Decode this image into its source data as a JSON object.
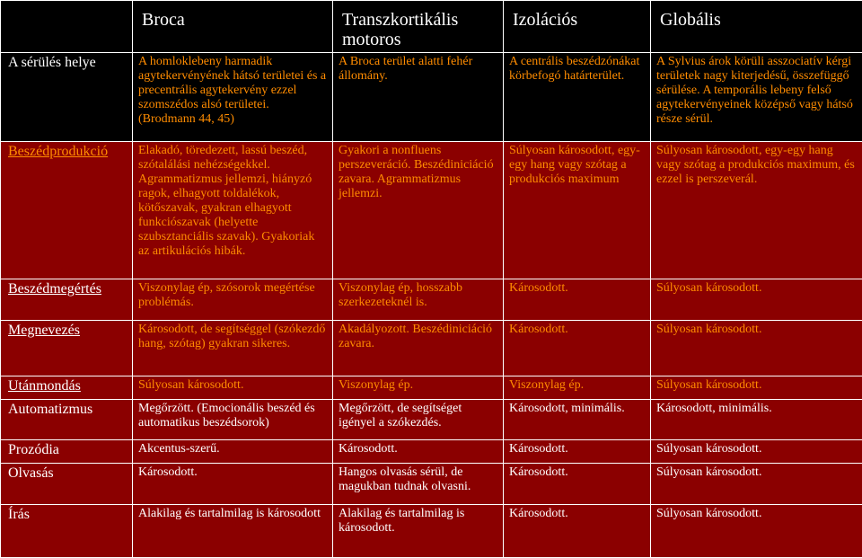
{
  "header": [
    "",
    "Broca",
    "Transzkortikális motoros",
    "Izolációs",
    "Globális"
  ],
  "rows": [
    {
      "label": "A sérülés helye",
      "cells": [
        "A homloklebeny harmadik agytekervényének hátsó területei és a precentrális agytekervény ezzel szomszédos alsó területei. (Brodmann 44, 45)",
        "A Broca terület alatti fehér állomány.",
        "A centrális beszédzónákat körbefogó határterület.",
        "A Sylvius árok körüli asszociatív kérgi területek nagy kiterjedésű, összefüggő sérülése. A temporális lebeny felső agytekervényeinek középső vagy hátsó része sérül."
      ]
    },
    {
      "label": "Beszédprodukció",
      "cells": [
        "Elakadó, töredezett, lassú beszéd, szótalálási nehézségekkel. Agrammatizmus jellemzi, hiányzó ragok, elhagyott toldalékok, kötőszavak, gyakran elhagyott funkciószavak (helyette szubsztanciális szavak). Gyakoriak az artikulációs hibák.",
        "Gyakori a nonfluens perszeveráció. Beszédiniciáció zavara. Agrammatizmus jellemzi.",
        "Súlyosan károsodott, egy-egy hang vagy szótag a produkciós maximum",
        "Súlyosan károsodott, egy-egy hang vagy szótag a produkciós maximum, és ezzel is perszeverál."
      ]
    },
    {
      "label": "Beszédmegértés",
      "cells": [
        "Viszonylag ép, szósorok megértése problémás.",
        "Viszonylag ép, hosszabb szerkezeteknél is.",
        "Károsodott.",
        "Súlyosan károsodott."
      ]
    },
    {
      "label": "Megnevezés",
      "cells": [
        "Károsodott, de segítséggel (szókezdő hang, szótag) gyakran sikeres.",
        "Akadályozott. Beszédiniciáció zavara.",
        "Károsodott.",
        "Súlyosan károsodott."
      ]
    },
    {
      "label": "Utánmondás",
      "cells": [
        "Súlyosan károsodott.",
        "Viszonylag ép.",
        "Viszonylag ép.",
        "Súlyosan károsodott."
      ]
    },
    {
      "label": "Automatizmus",
      "cells": [
        "Megőrzött. (Emocionális beszéd és automatikus beszédsorok)",
        "Megőrzött, de segítséget igényel a szókezdés.",
        "Károsodott, minimális.",
        "Károsodott, minimális."
      ]
    },
    {
      "label": "Prozódia",
      "cells": [
        "Akcentus-szerű.",
        "Károsodott.",
        "Károsodott.",
        "Súlyosan károsodott."
      ]
    },
    {
      "label": "Olvasás",
      "cells": [
        "Károsodott.",
        "Hangos olvasás sérül, de magukban tudnak olvasni.",
        "Károsodott.",
        "Súlyosan károsodott."
      ]
    },
    {
      "label": "Írás",
      "cells": [
        "Alakilag és tartalmilag is károsodott",
        "Alakilag és tartalmilag is károsodott.",
        "Károsodott.",
        "Súlyosan károsodott."
      ]
    }
  ],
  "colors": {
    "dark_red": "#8b0000",
    "black": "#000000",
    "orange": "#ff8c00",
    "white": "#ffffff"
  }
}
